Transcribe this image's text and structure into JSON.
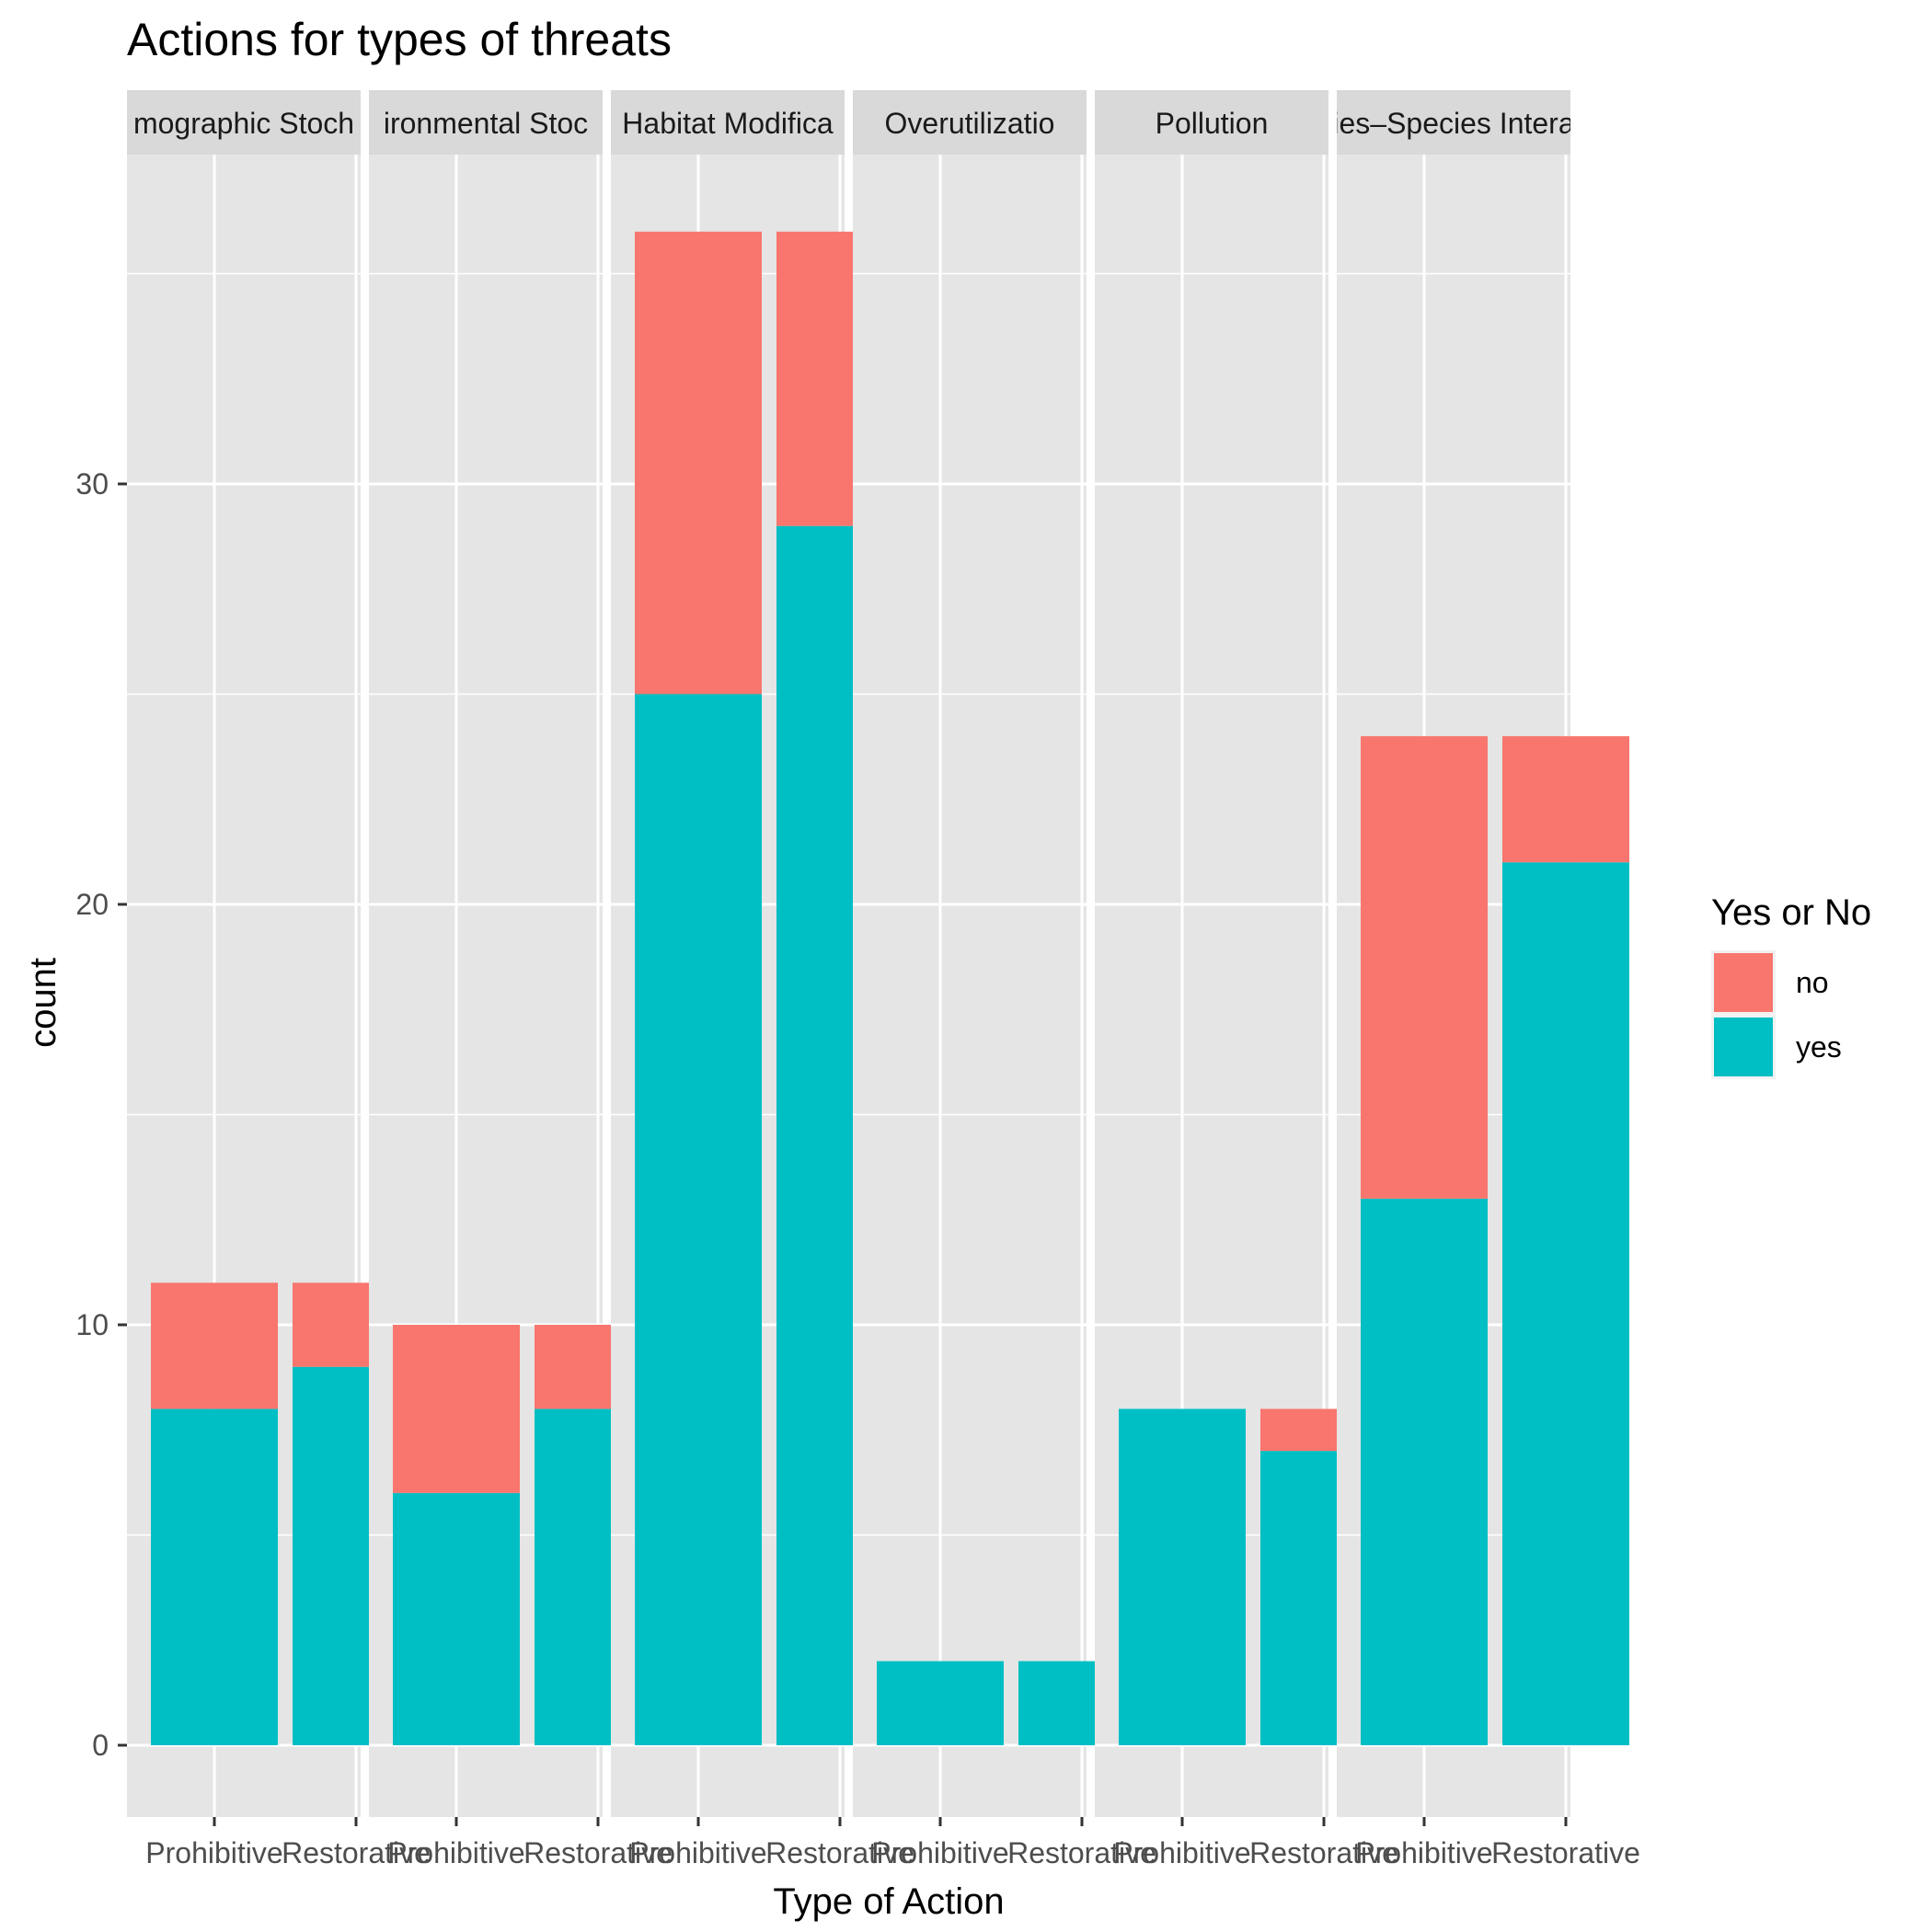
{
  "chart_data": {
    "type": "bar",
    "stacked": true,
    "faceted": true,
    "title": "Actions for types of threats",
    "xlabel": "Type of Action",
    "ylabel": "count",
    "ylim": [
      0,
      38
    ],
    "yticks": [
      0,
      10,
      20,
      30
    ],
    "grid": true,
    "legend": {
      "title": "Yes or No",
      "position": "right",
      "entries": [
        {
          "label": "no",
          "color": "#F8766D"
        },
        {
          "label": "yes",
          "color": "#00BFC4"
        }
      ]
    },
    "categories": [
      "Prohibitive",
      "Restorative"
    ],
    "facets": [
      {
        "label": "Demographic Stochasticity",
        "shown_label": "mographic Stoch",
        "bars": [
          {
            "category": "Prohibitive",
            "yes": 8,
            "no": 3
          },
          {
            "category": "Restorative",
            "yes": 9,
            "no": 2
          }
        ]
      },
      {
        "label": "Environmental Stochasticity",
        "shown_label": "ironmental Stoc",
        "bars": [
          {
            "category": "Prohibitive",
            "yes": 6,
            "no": 4
          },
          {
            "category": "Restorative",
            "yes": 8,
            "no": 2
          }
        ]
      },
      {
        "label": "Habitat Modification",
        "shown_label": "Habitat Modifica",
        "bars": [
          {
            "category": "Prohibitive",
            "yes": 25,
            "no": 11
          },
          {
            "category": "Restorative",
            "yes": 29,
            "no": 7
          }
        ]
      },
      {
        "label": "Overutilization",
        "shown_label": "Overutilizatio",
        "bars": [
          {
            "category": "Prohibitive",
            "yes": 2,
            "no": 0
          },
          {
            "category": "Restorative",
            "yes": 2,
            "no": 0
          }
        ]
      },
      {
        "label": "Pollution",
        "shown_label": "Pollution",
        "bars": [
          {
            "category": "Prohibitive",
            "yes": 8,
            "no": 0
          },
          {
            "category": "Restorative",
            "yes": 7,
            "no": 1
          }
        ]
      },
      {
        "label": "Species-Species Interactions",
        "shown_label": "cies–Species Interac",
        "bars": [
          {
            "category": "Prohibitive",
            "yes": 13,
            "no": 11
          },
          {
            "category": "Restorative",
            "yes": 21,
            "no": 3
          }
        ]
      }
    ],
    "colors": {
      "panel_bg": "#E5E5E5",
      "strip_bg": "#D9D9D9",
      "grid": "#FFFFFF",
      "axis_text": "#4D4D4D"
    }
  }
}
